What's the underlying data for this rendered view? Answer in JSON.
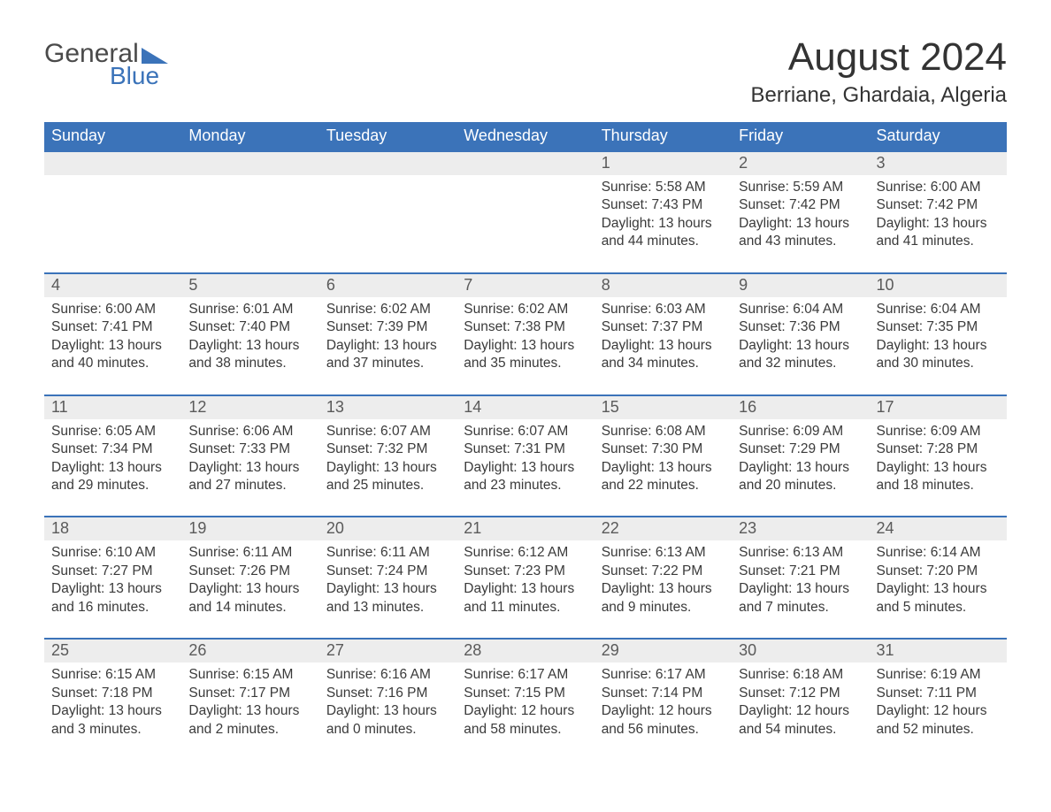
{
  "logo": {
    "word1": "General",
    "word2": "Blue",
    "triangle_color": "#3b73b9"
  },
  "title": "August 2024",
  "location": "Berriane, Ghardaia, Algeria",
  "colors": {
    "header_bg": "#3b73b9",
    "header_text": "#ffffff",
    "daynum_bg": "#ededed",
    "daynum_border": "#3b73b9",
    "body_text": "#3a3a3a",
    "page_bg": "#ffffff"
  },
  "weekdays": [
    "Sunday",
    "Monday",
    "Tuesday",
    "Wednesday",
    "Thursday",
    "Friday",
    "Saturday"
  ],
  "labels": {
    "sunrise": "Sunrise:",
    "sunset": "Sunset:",
    "daylight": "Daylight:"
  },
  "weeks": [
    [
      {
        "empty": true
      },
      {
        "empty": true
      },
      {
        "empty": true
      },
      {
        "empty": true
      },
      {
        "day": "1",
        "sunrise": "5:58 AM",
        "sunset": "7:43 PM",
        "daylight": "13 hours and 44 minutes."
      },
      {
        "day": "2",
        "sunrise": "5:59 AM",
        "sunset": "7:42 PM",
        "daylight": "13 hours and 43 minutes."
      },
      {
        "day": "3",
        "sunrise": "6:00 AM",
        "sunset": "7:42 PM",
        "daylight": "13 hours and 41 minutes."
      }
    ],
    [
      {
        "day": "4",
        "sunrise": "6:00 AM",
        "sunset": "7:41 PM",
        "daylight": "13 hours and 40 minutes."
      },
      {
        "day": "5",
        "sunrise": "6:01 AM",
        "sunset": "7:40 PM",
        "daylight": "13 hours and 38 minutes."
      },
      {
        "day": "6",
        "sunrise": "6:02 AM",
        "sunset": "7:39 PM",
        "daylight": "13 hours and 37 minutes."
      },
      {
        "day": "7",
        "sunrise": "6:02 AM",
        "sunset": "7:38 PM",
        "daylight": "13 hours and 35 minutes."
      },
      {
        "day": "8",
        "sunrise": "6:03 AM",
        "sunset": "7:37 PM",
        "daylight": "13 hours and 34 minutes."
      },
      {
        "day": "9",
        "sunrise": "6:04 AM",
        "sunset": "7:36 PM",
        "daylight": "13 hours and 32 minutes."
      },
      {
        "day": "10",
        "sunrise": "6:04 AM",
        "sunset": "7:35 PM",
        "daylight": "13 hours and 30 minutes."
      }
    ],
    [
      {
        "day": "11",
        "sunrise": "6:05 AM",
        "sunset": "7:34 PM",
        "daylight": "13 hours and 29 minutes."
      },
      {
        "day": "12",
        "sunrise": "6:06 AM",
        "sunset": "7:33 PM",
        "daylight": "13 hours and 27 minutes."
      },
      {
        "day": "13",
        "sunrise": "6:07 AM",
        "sunset": "7:32 PM",
        "daylight": "13 hours and 25 minutes."
      },
      {
        "day": "14",
        "sunrise": "6:07 AM",
        "sunset": "7:31 PM",
        "daylight": "13 hours and 23 minutes."
      },
      {
        "day": "15",
        "sunrise": "6:08 AM",
        "sunset": "7:30 PM",
        "daylight": "13 hours and 22 minutes."
      },
      {
        "day": "16",
        "sunrise": "6:09 AM",
        "sunset": "7:29 PM",
        "daylight": "13 hours and 20 minutes."
      },
      {
        "day": "17",
        "sunrise": "6:09 AM",
        "sunset": "7:28 PM",
        "daylight": "13 hours and 18 minutes."
      }
    ],
    [
      {
        "day": "18",
        "sunrise": "6:10 AM",
        "sunset": "7:27 PM",
        "daylight": "13 hours and 16 minutes."
      },
      {
        "day": "19",
        "sunrise": "6:11 AM",
        "sunset": "7:26 PM",
        "daylight": "13 hours and 14 minutes."
      },
      {
        "day": "20",
        "sunrise": "6:11 AM",
        "sunset": "7:24 PM",
        "daylight": "13 hours and 13 minutes."
      },
      {
        "day": "21",
        "sunrise": "6:12 AM",
        "sunset": "7:23 PM",
        "daylight": "13 hours and 11 minutes."
      },
      {
        "day": "22",
        "sunrise": "6:13 AM",
        "sunset": "7:22 PM",
        "daylight": "13 hours and 9 minutes."
      },
      {
        "day": "23",
        "sunrise": "6:13 AM",
        "sunset": "7:21 PM",
        "daylight": "13 hours and 7 minutes."
      },
      {
        "day": "24",
        "sunrise": "6:14 AM",
        "sunset": "7:20 PM",
        "daylight": "13 hours and 5 minutes."
      }
    ],
    [
      {
        "day": "25",
        "sunrise": "6:15 AM",
        "sunset": "7:18 PM",
        "daylight": "13 hours and 3 minutes."
      },
      {
        "day": "26",
        "sunrise": "6:15 AM",
        "sunset": "7:17 PM",
        "daylight": "13 hours and 2 minutes."
      },
      {
        "day": "27",
        "sunrise": "6:16 AM",
        "sunset": "7:16 PM",
        "daylight": "13 hours and 0 minutes."
      },
      {
        "day": "28",
        "sunrise": "6:17 AM",
        "sunset": "7:15 PM",
        "daylight": "12 hours and 58 minutes."
      },
      {
        "day": "29",
        "sunrise": "6:17 AM",
        "sunset": "7:14 PM",
        "daylight": "12 hours and 56 minutes."
      },
      {
        "day": "30",
        "sunrise": "6:18 AM",
        "sunset": "7:12 PM",
        "daylight": "12 hours and 54 minutes."
      },
      {
        "day": "31",
        "sunrise": "6:19 AM",
        "sunset": "7:11 PM",
        "daylight": "12 hours and 52 minutes."
      }
    ]
  ]
}
